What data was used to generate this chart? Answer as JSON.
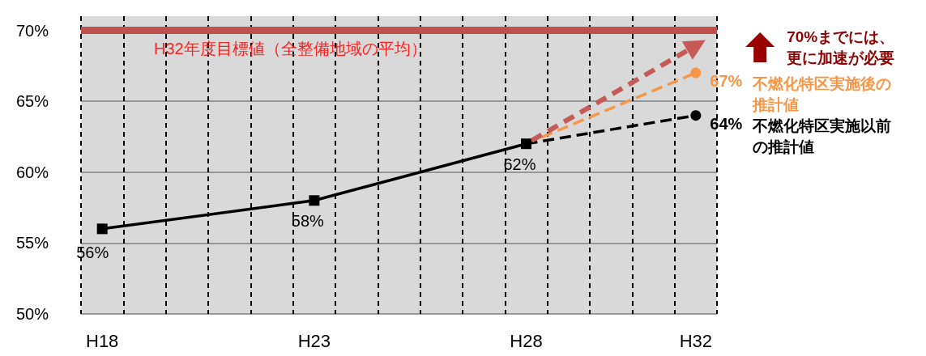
{
  "chart_data": {
    "type": "line",
    "categories": [
      "H18",
      null,
      null,
      null,
      null,
      "H23",
      null,
      null,
      null,
      null,
      "H28",
      null,
      null,
      null,
      "H32"
    ],
    "ylim": [
      50,
      71
    ],
    "yticks": [
      {
        "value": 50,
        "label": "50%"
      },
      {
        "value": 55,
        "label": "55%"
      },
      {
        "value": 60,
        "label": "60%"
      },
      {
        "value": 65,
        "label": "65%"
      },
      {
        "value": 70,
        "label": "70%"
      }
    ],
    "grid": true,
    "legend": false,
    "series": [
      {
        "color": "#000000",
        "values": [
          56,
          null,
          null,
          null,
          null,
          58,
          null,
          null,
          null,
          null,
          62,
          null,
          null,
          null,
          null
        ],
        "value_labels": [
          "56%",
          null,
          null,
          null,
          null,
          "58%",
          null,
          null,
          null,
          null,
          "62%",
          null,
          null,
          null,
          null
        ],
        "marker": "square",
        "line_style": "solid"
      },
      {
        "name": "不燃化特区実施以前の推計値",
        "color": "#000000",
        "values": [
          null,
          null,
          null,
          null,
          null,
          null,
          null,
          null,
          null,
          null,
          62,
          null,
          null,
          null,
          64
        ],
        "value_labels": [
          null,
          null,
          null,
          null,
          null,
          null,
          null,
          null,
          null,
          null,
          null,
          null,
          null,
          null,
          "64%"
        ],
        "marker": "circle",
        "line_style": "dashed"
      },
      {
        "name": "不燃化特区実施後の推計値",
        "color": "#f79646",
        "values": [
          null,
          null,
          null,
          null,
          null,
          null,
          null,
          null,
          null,
          null,
          62,
          null,
          null,
          null,
          67
        ],
        "value_labels": [
          null,
          null,
          null,
          null,
          null,
          null,
          null,
          null,
          null,
          null,
          null,
          null,
          null,
          null,
          "67%"
        ],
        "marker": "circle",
        "line_style": "dashed"
      }
    ],
    "ref_lines": [
      {
        "axis": "y",
        "value": 70,
        "label": "H32年度目標値（全整備地域の平均）",
        "color": "#c0504d"
      }
    ],
    "annotations": [
      "70%までには、更に加速が必要"
    ]
  }
}
